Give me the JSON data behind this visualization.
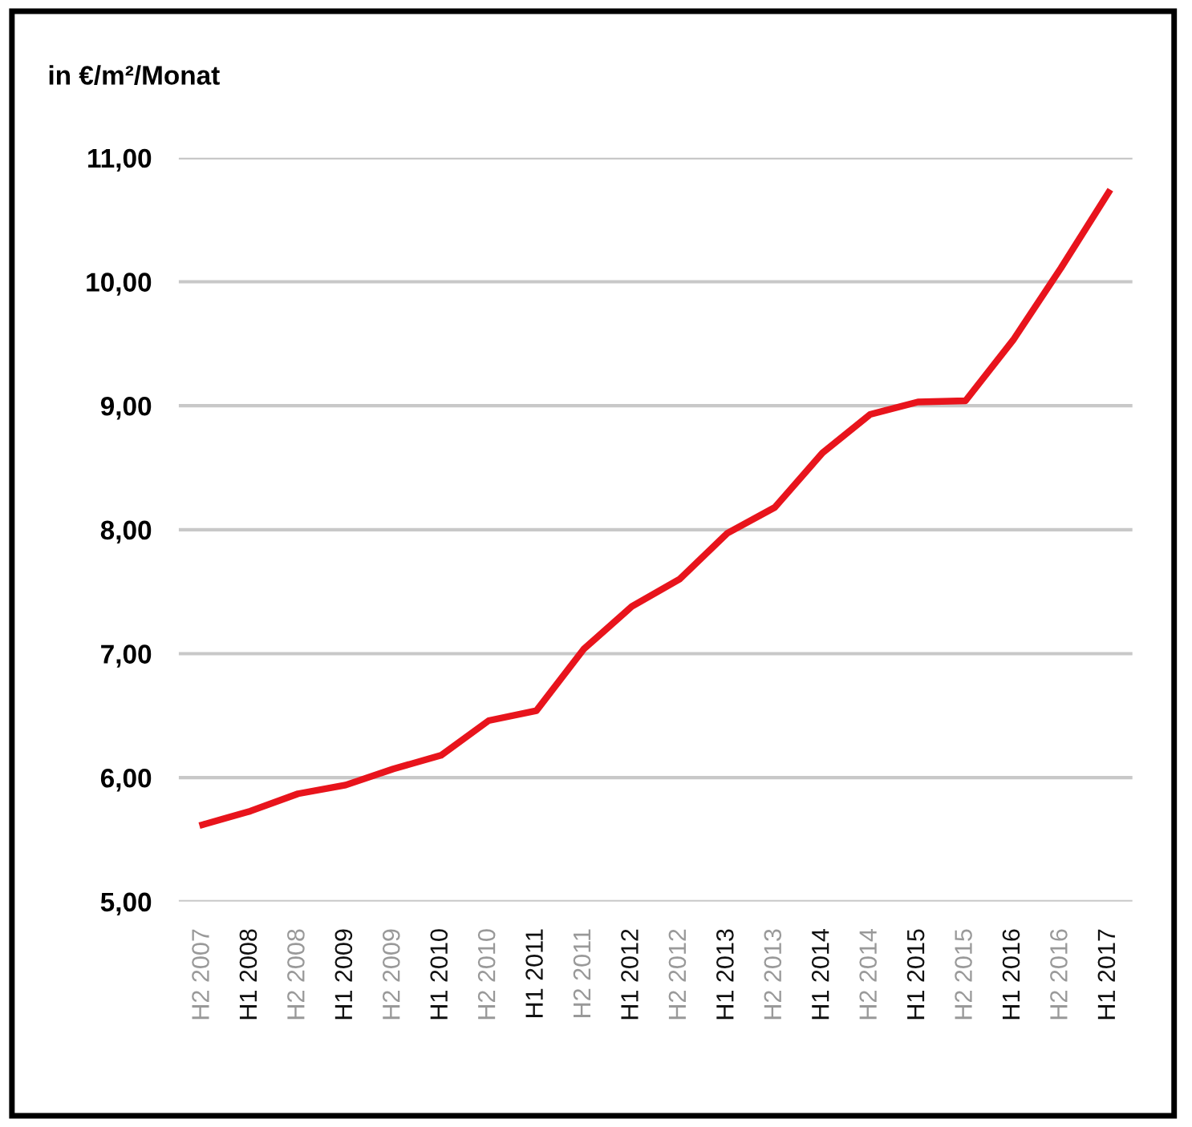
{
  "chart_data": {
    "type": "line",
    "ylabel": "in €/m²/Monat",
    "categories": [
      "H2 2007",
      "H1 2008",
      "H2 2008",
      "H1 2009",
      "H2 2009",
      "H1 2010",
      "H2 2010",
      "H1 2011",
      "H2 2011",
      "H1 2012",
      "H2 2012",
      "H1 2013",
      "H2 2013",
      "H1 2014",
      "H2 2014",
      "H1 2015",
      "H2 2015",
      "H1 2016",
      "H2 2016",
      "H1 2017"
    ],
    "series": [
      {
        "color": "#e8141c",
        "values": [
          5.62,
          5.73,
          5.87,
          5.94,
          6.07,
          6.18,
          6.46,
          6.54,
          7.04,
          7.38,
          7.6,
          7.97,
          8.18,
          8.62,
          8.93,
          9.03,
          9.04,
          9.53,
          10.11,
          10.72
        ]
      }
    ],
    "ylim": [
      5,
      11
    ],
    "yticks": [
      {
        "value": 5,
        "label": "5,00"
      },
      {
        "value": 6,
        "label": "6,00"
      },
      {
        "value": 7,
        "label": "7,00"
      },
      {
        "value": 8,
        "label": "8,00"
      },
      {
        "value": 9,
        "label": "9,00"
      },
      {
        "value": 10,
        "label": "10,00"
      },
      {
        "value": 11,
        "label": "11,00"
      }
    ],
    "grid": "y",
    "marker": "none",
    "line_style": "solid"
  }
}
